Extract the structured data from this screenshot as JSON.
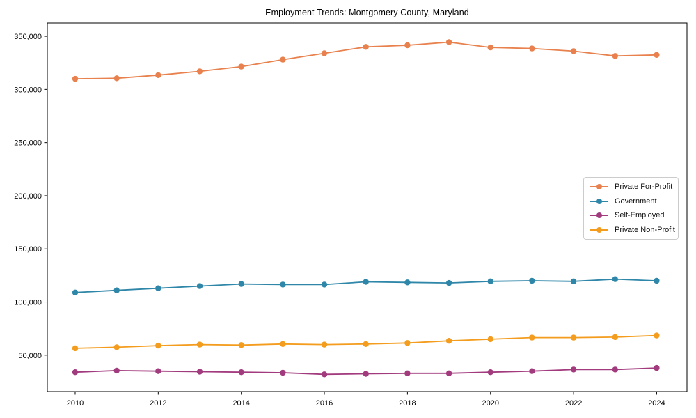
{
  "chart_data": {
    "type": "line",
    "title": "Employment Trends: Montgomery County, Maryland",
    "xlabel": "",
    "ylabel": "",
    "grid": false,
    "legend_position": "center-right",
    "x": [
      2010,
      2011,
      2012,
      2013,
      2014,
      2015,
      2016,
      2017,
      2018,
      2019,
      2020,
      2021,
      2022,
      2023,
      2024
    ],
    "xticks": [
      2010,
      2012,
      2014,
      2016,
      2018,
      2020,
      2022,
      2024
    ],
    "yticks": [
      50000,
      100000,
      150000,
      200000,
      250000,
      300000,
      350000
    ],
    "xlim": [
      2009.33,
      2024.73
    ],
    "ylim": [
      15800,
      362500
    ],
    "series": [
      {
        "id": "private-for-profit",
        "name": "Private For-Profit",
        "color": "#E8814D",
        "values": [
          310000,
          310500,
          313500,
          317000,
          321500,
          328000,
          334000,
          340000,
          341500,
          344500,
          339500,
          338500,
          336000,
          331500,
          332500
        ]
      },
      {
        "id": "government",
        "name": "Government",
        "color": "#2E86A8",
        "values": [
          109000,
          111000,
          113000,
          115000,
          117000,
          116500,
          116500,
          119000,
          118500,
          118000,
          119500,
          120000,
          119500,
          121500,
          120000
        ]
      },
      {
        "id": "self-employed",
        "name": "Self-Employed",
        "color": "#A23B7E",
        "values": [
          34000,
          35500,
          35000,
          34500,
          34000,
          33500,
          32000,
          32500,
          33000,
          33000,
          34000,
          35000,
          36500,
          36500,
          38000
        ]
      },
      {
        "id": "private-non-profit",
        "name": "Private Non-Profit",
        "color": "#F39C1D",
        "values": [
          56500,
          57500,
          59000,
          60000,
          59500,
          60500,
          60000,
          60500,
          61500,
          63500,
          65000,
          66500,
          66500,
          67000,
          68500
        ]
      }
    ],
    "axis_color": "#000000",
    "tick_label_color": "#000000"
  }
}
